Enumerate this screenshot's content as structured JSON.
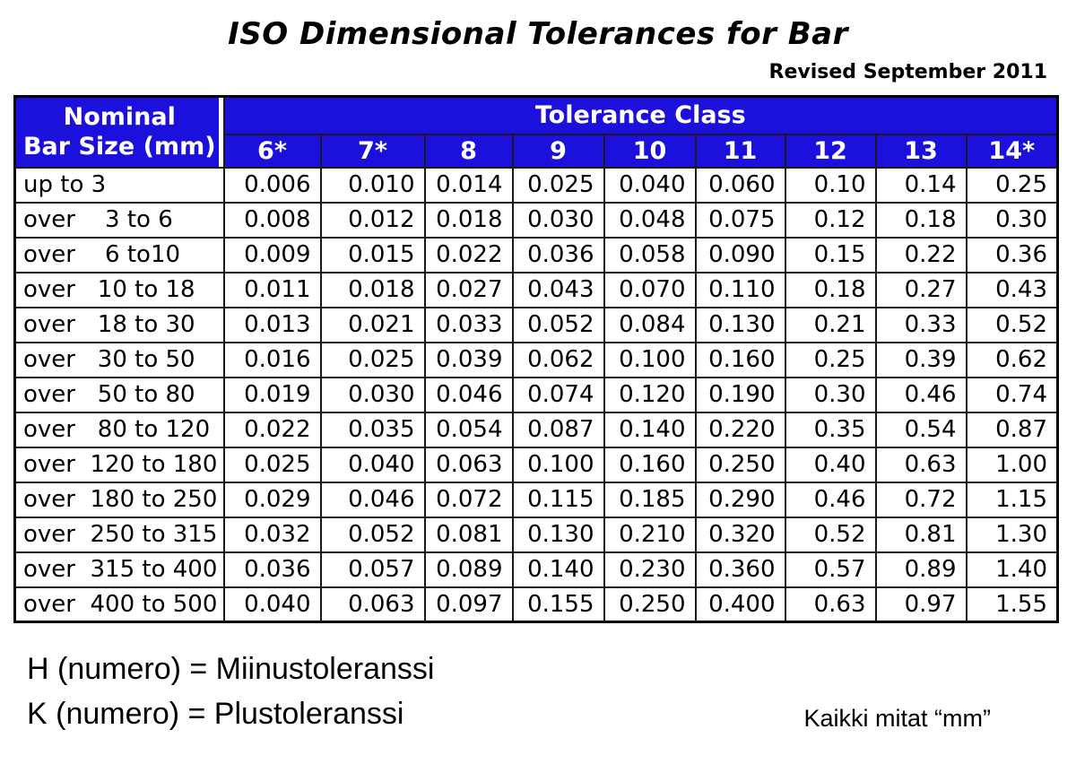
{
  "page": {
    "title": "ISO Dimensional Tolerances for Bar",
    "revision_note": "Revised September 2011"
  },
  "table": {
    "corner_header": "Nominal\nBar Size (mm)",
    "group_header": "Tolerance Class",
    "class_headers": [
      "6*",
      "7*",
      "8",
      "9",
      "10",
      "11",
      "12",
      "13",
      "14*"
    ],
    "rows": [
      {
        "label": "up to 3",
        "values": [
          "0.006",
          "0.010",
          "0.014",
          "0.025",
          "0.040",
          "0.060",
          "0.10",
          "0.14",
          "0.25"
        ]
      },
      {
        "label": "over    3 to 6",
        "values": [
          "0.008",
          "0.012",
          "0.018",
          "0.030",
          "0.048",
          "0.075",
          "0.12",
          "0.18",
          "0.30"
        ]
      },
      {
        "label": "over    6 to10",
        "values": [
          "0.009",
          "0.015",
          "0.022",
          "0.036",
          "0.058",
          "0.090",
          "0.15",
          "0.22",
          "0.36"
        ]
      },
      {
        "label": "over   10 to 18",
        "values": [
          "0.011",
          "0.018",
          "0.027",
          "0.043",
          "0.070",
          "0.110",
          "0.18",
          "0.27",
          "0.43"
        ]
      },
      {
        "label": "over   18 to 30",
        "values": [
          "0.013",
          "0.021",
          "0.033",
          "0.052",
          "0.084",
          "0.130",
          "0.21",
          "0.33",
          "0.52"
        ]
      },
      {
        "label": "over   30 to 50",
        "values": [
          "0.016",
          "0.025",
          "0.039",
          "0.062",
          "0.100",
          "0.160",
          "0.25",
          "0.39",
          "0.62"
        ]
      },
      {
        "label": "over   50 to 80",
        "values": [
          "0.019",
          "0.030",
          "0.046",
          "0.074",
          "0.120",
          "0.190",
          "0.30",
          "0.46",
          "0.74"
        ]
      },
      {
        "label": "over   80 to 120",
        "values": [
          "0.022",
          "0.035",
          "0.054",
          "0.087",
          "0.140",
          "0.220",
          "0.35",
          "0.54",
          "0.87"
        ]
      },
      {
        "label": "over  120 to 180",
        "values": [
          "0.025",
          "0.040",
          "0.063",
          "0.100",
          "0.160",
          "0.250",
          "0.40",
          "0.63",
          "1.00"
        ]
      },
      {
        "label": "over  180 to 250",
        "values": [
          "0.029",
          "0.046",
          "0.072",
          "0.115",
          "0.185",
          "0.290",
          "0.46",
          "0.72",
          "1.15"
        ]
      },
      {
        "label": "over  250 to 315",
        "values": [
          "0.032",
          "0.052",
          "0.081",
          "0.130",
          "0.210",
          "0.320",
          "0.52",
          "0.81",
          "1.30"
        ]
      },
      {
        "label": "over  315 to 400",
        "values": [
          "0.036",
          "0.057",
          "0.089",
          "0.140",
          "0.230",
          "0.360",
          "0.57",
          "0.89",
          "1.40"
        ]
      },
      {
        "label": "over  400 to 500",
        "values": [
          "0.040",
          "0.063",
          "0.097",
          "0.155",
          "0.250",
          "0.400",
          "0.63",
          "0.97",
          "1.55"
        ]
      }
    ]
  },
  "legend": {
    "line1": "H (numero) = Miinustoleranssi",
    "line2": "K (numero) = Plustoleranssi",
    "units_note": "Kaikki mitat “mm”"
  },
  "colors": {
    "header_blue": "#1c10dd",
    "header_text": "#ffffff",
    "grid_line": "#1a1a1a"
  }
}
